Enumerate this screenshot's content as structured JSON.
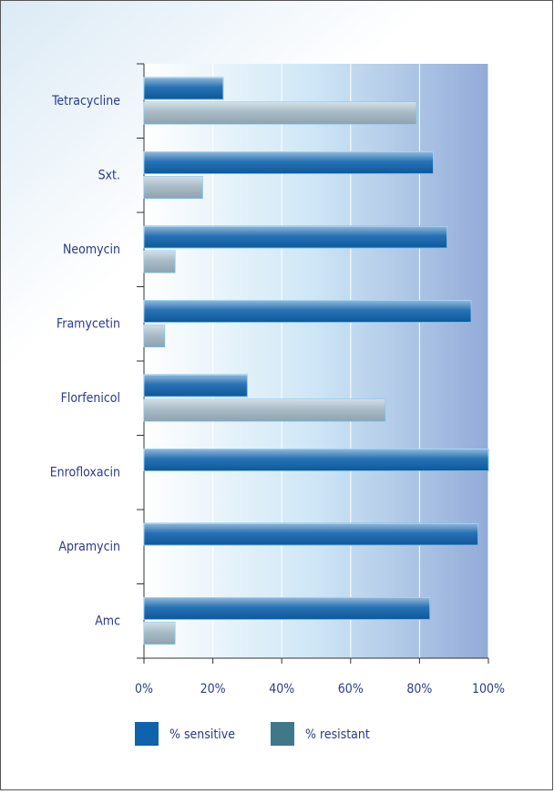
{
  "chart_data": {
    "type": "bar",
    "orientation": "horizontal",
    "categories": [
      "Tetracycline",
      "Sxt.",
      "Neomycin",
      "Framycetin",
      "Florfenicol",
      "Enrofloxacin",
      "Apramycin",
      "Amc"
    ],
    "series": [
      {
        "name": "% sensitive",
        "color": "#0f62ac",
        "values": [
          23,
          84,
          88,
          95,
          30,
          100,
          97,
          83
        ]
      },
      {
        "name": "% resistant",
        "color": "#3e7889",
        "values": [
          79,
          17,
          9,
          6,
          70,
          0,
          0,
          9
        ]
      }
    ],
    "xlim": [
      0,
      100
    ],
    "xticks": [
      {
        "value": 0,
        "label": "0%"
      },
      {
        "value": 20,
        "label": "20%"
      },
      {
        "value": 40,
        "label": "40%"
      },
      {
        "value": 60,
        "label": "60%"
      },
      {
        "value": 80,
        "label": "80%"
      },
      {
        "value": 100,
        "label": "100%"
      }
    ],
    "grid": true,
    "legend": "bottom"
  }
}
